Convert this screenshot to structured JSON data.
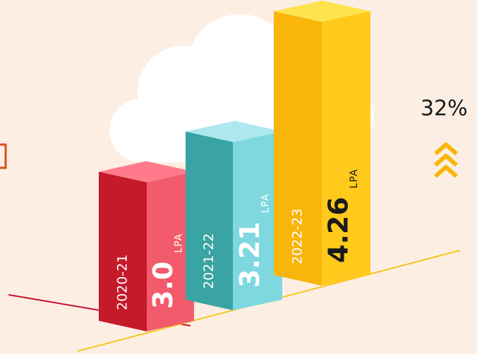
{
  "chart_data": {
    "type": "bar3d",
    "categories": [
      "2020-21",
      "2021-22",
      "2022-23"
    ],
    "values": [
      3.0,
      3.21,
      4.26
    ],
    "value_labels": [
      "3.0",
      "3.21",
      "4.26"
    ],
    "unit": "LPA",
    "colors": [
      {
        "left": "#c41a2a",
        "right": "#f25b6b",
        "top": "#ff7b8c",
        "text": "#ffffff"
      },
      {
        "left": "#3aa3a3",
        "right": "#7fd8e0",
        "top": "#aee8ef",
        "text": "#ffffff"
      },
      {
        "left": "#f9b50a",
        "right": "#ffca1c",
        "top": "#ffe34e",
        "text": "#1a1a1a"
      }
    ],
    "annotation": "32%"
  }
}
